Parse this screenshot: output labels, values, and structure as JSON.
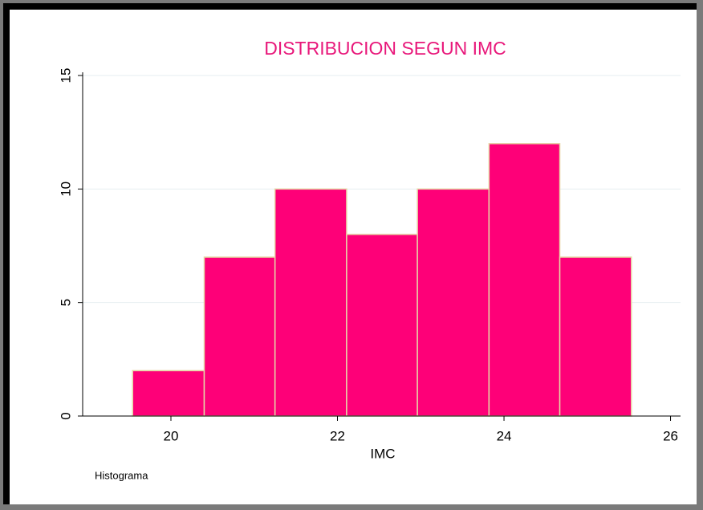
{
  "chart_data": {
    "type": "histogram",
    "title": "DISTRIBUCION SEGUN IMC",
    "x_label": "IMC",
    "note": "Histograma",
    "bins": [
      19.54,
      20.4,
      21.25,
      22.11,
      22.96,
      23.82,
      24.67,
      25.53
    ],
    "values": [
      2,
      7,
      10,
      8,
      10,
      12,
      7
    ],
    "color": "#fe0078",
    "xlim": [
      18.94,
      26.12
    ],
    "xticks": [
      20,
      22,
      24,
      26
    ],
    "ylim": [
      0,
      15
    ],
    "yticks": [
      0,
      5,
      10,
      15
    ],
    "grid": true
  }
}
